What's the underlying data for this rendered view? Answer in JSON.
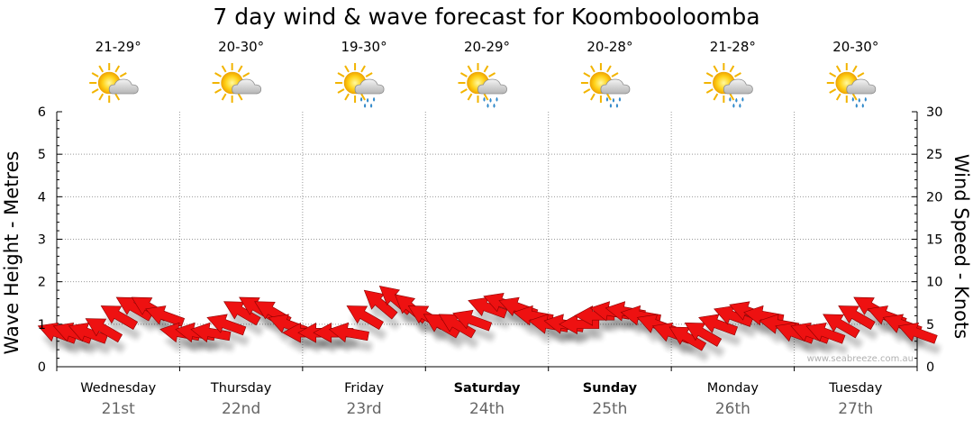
{
  "chart_data": {
    "type": "line",
    "title": "7 day wind & wave forecast for Koombooloomba",
    "ylabel_left": "Wave Height - Metres",
    "ylabel_right": "Wind Speed - Knots",
    "ylim_left": [
      0,
      6
    ],
    "ylim_right": [
      0,
      30
    ],
    "yticks_left": [
      "0",
      "1",
      "2",
      "3",
      "4",
      "5",
      "6"
    ],
    "yticks_right": [
      "0",
      "5",
      "10",
      "15",
      "20",
      "25",
      "30"
    ],
    "grid": true,
    "watermark": "www.seabreeze.com.au",
    "days": [
      {
        "name": "Wednesday",
        "date": "21st",
        "temp": "21-29°",
        "weather": "partly-cloudy",
        "bold": false
      },
      {
        "name": "Thursday",
        "date": "22nd",
        "temp": "20-30°",
        "weather": "partly-cloudy",
        "bold": false
      },
      {
        "name": "Friday",
        "date": "23rd",
        "temp": "19-30°",
        "weather": "showers",
        "bold": false
      },
      {
        "name": "Saturday",
        "date": "24th",
        "temp": "20-29°",
        "weather": "showers",
        "bold": true
      },
      {
        "name": "Sunday",
        "date": "25th",
        "temp": "20-28°",
        "weather": "showers",
        "bold": true
      },
      {
        "name": "Monday",
        "date": "26th",
        "temp": "21-28°",
        "weather": "showers",
        "bold": false
      },
      {
        "name": "Tuesday",
        "date": "27th",
        "temp": "20-30°",
        "weather": "showers",
        "bold": false
      }
    ],
    "series": [
      {
        "name": "Wind Speed (knots)",
        "color": "#ee1111",
        "x_hours": [
          0,
          3,
          6,
          9,
          12,
          15,
          18,
          21,
          24,
          27,
          30,
          33,
          36,
          39,
          42,
          45,
          48,
          51,
          54,
          57,
          60,
          63,
          66,
          69,
          72,
          75,
          78,
          81,
          84,
          87,
          90,
          93,
          96,
          99,
          102,
          105,
          108,
          111,
          114,
          117,
          120,
          123,
          126,
          129,
          132,
          135,
          138,
          141,
          144,
          147,
          150,
          153,
          156,
          159,
          162,
          165,
          168
        ],
        "values": [
          4,
          4,
          4,
          4.5,
          6,
          7,
          7,
          6,
          4,
          4,
          4,
          5,
          6.5,
          7,
          6.5,
          5,
          4,
          4,
          4,
          4,
          6,
          7.5,
          8,
          7,
          6,
          5,
          5,
          5.5,
          7,
          7.5,
          7,
          6,
          5,
          5,
          5,
          6,
          6.5,
          6.5,
          6,
          5,
          4,
          3.5,
          4,
          5,
          6,
          6.5,
          6,
          5,
          4,
          4,
          4,
          5,
          6,
          7,
          6,
          5,
          4
        ],
        "direction_deg": [
          110,
          110,
          110,
          120,
          120,
          120,
          120,
          110,
          100,
          100,
          100,
          110,
          120,
          120,
          120,
          110,
          90,
          90,
          90,
          100,
          120,
          130,
          130,
          130,
          120,
          120,
          120,
          110,
          110,
          110,
          110,
          100,
          100,
          100,
          90,
          90,
          100,
          100,
          100,
          110,
          110,
          120,
          120,
          110,
          110,
          110,
          100,
          100,
          110,
          110,
          110,
          120,
          120,
          120,
          110,
          110,
          110
        ]
      }
    ]
  }
}
